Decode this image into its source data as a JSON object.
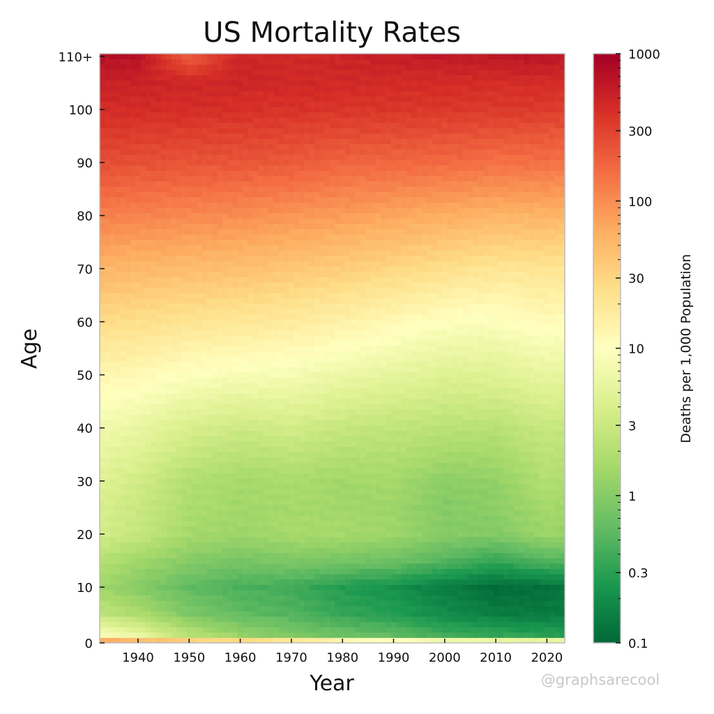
{
  "chart_data": {
    "type": "heatmap",
    "title": "US Mortality Rates",
    "xlabel": "Year",
    "ylabel": "Age",
    "colorbar_label": "Deaths per 1,000 Population",
    "colormap": "RdYlGn_r",
    "color_scale": "log",
    "color_range": [
      0.1,
      1000
    ],
    "colorbar_ticks": [
      0.1,
      0.3,
      1,
      3,
      10,
      30,
      100,
      300,
      1000
    ],
    "colorbar_tick_labels": [
      "0.1",
      "0.3",
      "1",
      "3",
      "10",
      "30",
      "100",
      "300",
      "1000"
    ],
    "colormap_stops": [
      "#006837",
      "#1a9850",
      "#66bd63",
      "#a6d96a",
      "#d9ef8b",
      "#ffffbf",
      "#fee08b",
      "#fdae61",
      "#f46d43",
      "#d73027",
      "#a50026"
    ],
    "x_range": [
      1933,
      2023
    ],
    "y_range": [
      0,
      110
    ],
    "x_ticks": [
      1940,
      1950,
      1960,
      1970,
      1980,
      1990,
      2000,
      2010,
      2020
    ],
    "x_tick_labels": [
      "1940",
      "1950",
      "1960",
      "1970",
      "1980",
      "1990",
      "2000",
      "2010",
      "2020"
    ],
    "y_ticks": [
      0,
      10,
      20,
      30,
      40,
      50,
      60,
      70,
      80,
      90,
      100,
      110
    ],
    "y_tick_labels": [
      "0",
      "10",
      "20",
      "30",
      "40",
      "50",
      "60",
      "70",
      "80",
      "90",
      "100",
      "110+"
    ],
    "grid_years": [
      1933,
      1940,
      1950,
      1960,
      1970,
      1980,
      1990,
      2000,
      2010,
      2020,
      2023
    ],
    "grid_ages": [
      0,
      1,
      5,
      10,
      15,
      20,
      25,
      30,
      40,
      50,
      60,
      70,
      80,
      90,
      100,
      105,
      110
    ],
    "rates_per_1000": [
      [
        60,
        50,
        32,
        27,
        21,
        13,
        10,
        7,
        6.2,
        5.5,
        5.6
      ],
      [
        9,
        6,
        2.2,
        1.3,
        0.9,
        0.7,
        0.6,
        0.4,
        0.35,
        0.3,
        0.3
      ],
      [
        2.5,
        1.8,
        0.9,
        0.6,
        0.5,
        0.35,
        0.28,
        0.2,
        0.15,
        0.14,
        0.15
      ],
      [
        1.4,
        1.0,
        0.6,
        0.45,
        0.4,
        0.28,
        0.22,
        0.15,
        0.11,
        0.12,
        0.13
      ],
      [
        2.0,
        1.5,
        1.0,
        0.8,
        0.9,
        0.8,
        0.7,
        0.5,
        0.35,
        0.5,
        0.5
      ],
      [
        3.5,
        2.8,
        1.6,
        1.4,
        1.6,
        1.6,
        1.4,
        1.0,
        0.95,
        1.4,
        1.3
      ],
      [
        4,
        3,
        1.8,
        1.5,
        1.6,
        1.5,
        1.4,
        1.0,
        1.1,
        1.6,
        1.5
      ],
      [
        4.5,
        3.5,
        2,
        1.6,
        1.7,
        1.5,
        1.6,
        1.1,
        1.2,
        2.0,
        1.9
      ],
      [
        7,
        6,
        4,
        3.2,
        3.5,
        2.8,
        2.5,
        2.3,
        2.2,
        2.9,
        2.7
      ],
      [
        13,
        12,
        9.5,
        8.5,
        8,
        6.5,
        5.5,
        4.5,
        4.7,
        5.8,
        5.5
      ],
      [
        27,
        25,
        22,
        20,
        18,
        15,
        12,
        9.5,
        9,
        11.5,
        11
      ],
      [
        55,
        52,
        48,
        45,
        40,
        35,
        30,
        25,
        21,
        22,
        21
      ],
      [
        120,
        115,
        105,
        100,
        90,
        80,
        70,
        62,
        55,
        56,
        53
      ],
      [
        250,
        245,
        230,
        225,
        210,
        180,
        175,
        165,
        150,
        150,
        145
      ],
      [
        430,
        430,
        410,
        400,
        380,
        370,
        360,
        350,
        340,
        330,
        320
      ],
      [
        520,
        520,
        470,
        480,
        460,
        450,
        440,
        430,
        420,
        430,
        420
      ],
      [
        750,
        700,
        200,
        500,
        450,
        500,
        550,
        600,
        620,
        650,
        640
      ]
    ]
  },
  "watermark": "@graphsarecool"
}
